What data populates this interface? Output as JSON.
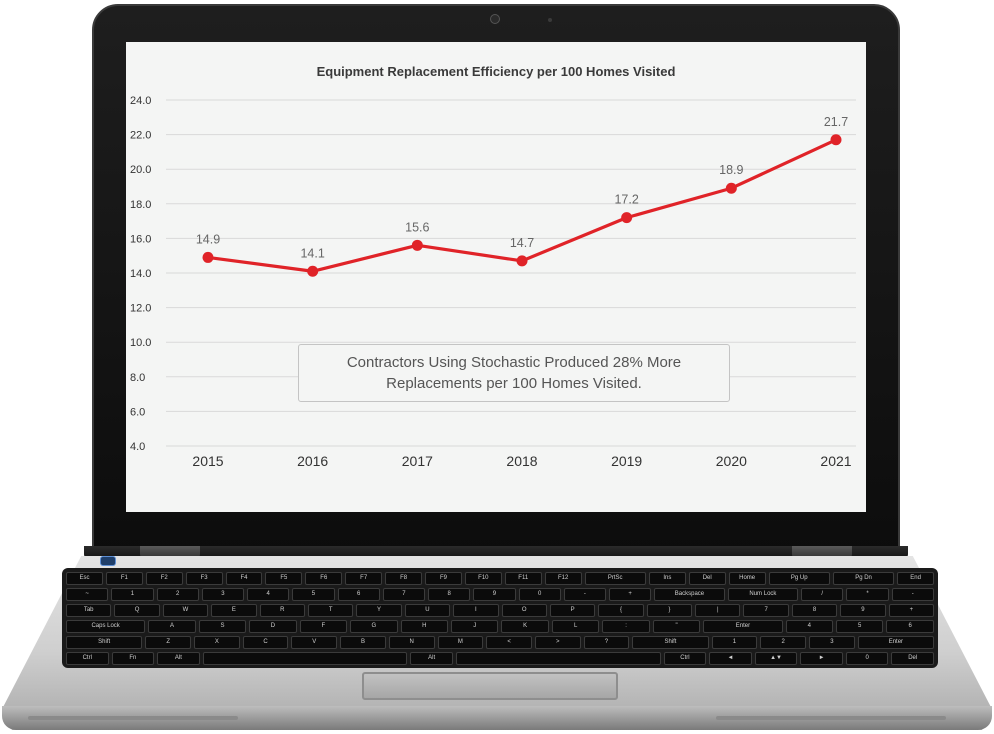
{
  "chart_data": {
    "type": "line",
    "title": "Equipment Replacement Efficiency per 100 Homes Visited",
    "categories": [
      "2015",
      "2016",
      "2017",
      "2018",
      "2019",
      "2020",
      "2021"
    ],
    "series": [
      {
        "name": "Replacements per 100 Homes Visited",
        "values": [
          14.9,
          14.1,
          15.6,
          14.7,
          17.2,
          18.9,
          21.7
        ],
        "data_labels": [
          "14.9",
          "14.1",
          "15.6",
          "14.7",
          "17.2",
          "18.9",
          "21.7"
        ]
      }
    ],
    "y_ticks": [
      "24.0",
      "22.0",
      "20.0",
      "18.0",
      "16.0",
      "14.0",
      "12.0",
      "10.0",
      "8.0",
      "6.0",
      "4.0"
    ],
    "ylim": [
      4,
      24
    ],
    "xlabel": "",
    "ylabel": "",
    "grid": true,
    "line_color": "#e02328",
    "annotation": "Contractors Using Stochastic Produced 28% More Replacements per 100 Homes Visited."
  },
  "keyboard": {
    "rows": [
      [
        "Esc",
        "F1",
        "F2",
        "F3",
        "F4",
        "F5",
        "F6",
        "F7",
        "F8",
        "F9",
        "F10",
        "F11",
        "F12",
        "PrtSc",
        "Ins",
        "Del",
        "Home",
        "Pg Up",
        "Pg Dn",
        "End"
      ],
      [
        "~",
        "1",
        "2",
        "3",
        "4",
        "5",
        "6",
        "7",
        "8",
        "9",
        "0",
        "-",
        "+",
        "Backspace",
        "Num Lock",
        "/",
        "*",
        "-"
      ],
      [
        "Tab",
        "Q",
        "W",
        "E",
        "R",
        "T",
        "Y",
        "U",
        "I",
        "O",
        "P",
        "{",
        "}",
        "|",
        "7",
        "8",
        "9",
        "+"
      ],
      [
        "Caps Lock",
        "A",
        "S",
        "D",
        "F",
        "G",
        "H",
        "J",
        "K",
        "L",
        ":",
        "\"",
        "Enter",
        "4",
        "5",
        "6"
      ],
      [
        "Shift",
        "Z",
        "X",
        "C",
        "V",
        "B",
        "N",
        "M",
        "<",
        ">",
        "?",
        "Shift",
        "1",
        "2",
        "3",
        "Enter"
      ],
      [
        "Ctrl",
        "Fn",
        "Alt",
        "",
        "Alt",
        "",
        "Ctrl",
        "◄",
        "▲▼",
        "►",
        "0",
        "Del"
      ]
    ]
  }
}
